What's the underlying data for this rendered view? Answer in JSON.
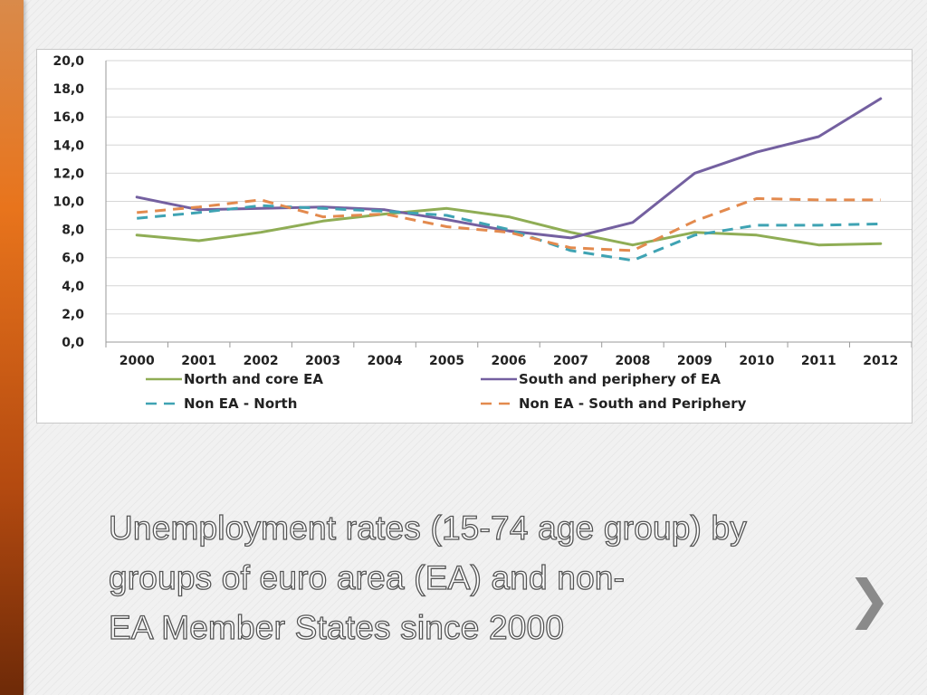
{
  "slide": {
    "caption_lines": [
      "Unemployment rates (15-74 age group) by",
      "groups of euro area (EA) and non-",
      "EA Member States since 2000"
    ],
    "next_icon": "chevron-right-icon",
    "next_glyph": "❯"
  },
  "chart_data": {
    "type": "line",
    "title": "",
    "xlabel": "",
    "ylabel": "",
    "ylim": [
      0,
      20
    ],
    "y_ticks": [
      "0,0",
      "2,0",
      "4,0",
      "6,0",
      "8,0",
      "10,0",
      "12,0",
      "14,0",
      "16,0",
      "18,0",
      "20,0"
    ],
    "x": [
      "2000",
      "2001",
      "2002",
      "2003",
      "2004",
      "2005",
      "2006",
      "2007",
      "2008",
      "2009",
      "2010",
      "2011",
      "2012"
    ],
    "grid": true,
    "legend_position": "bottom",
    "series": [
      {
        "name": "North and core EA",
        "color": "#8fad55",
        "dash": "solid",
        "values": [
          7.6,
          7.2,
          7.8,
          8.6,
          9.1,
          9.5,
          8.9,
          7.8,
          6.9,
          7.8,
          7.6,
          6.9,
          7.0
        ]
      },
      {
        "name": "South and periphery of EA",
        "color": "#7460a0",
        "dash": "solid",
        "values": [
          10.3,
          9.4,
          9.5,
          9.6,
          9.4,
          8.7,
          7.9,
          7.4,
          8.5,
          12.0,
          13.5,
          14.6,
          17.3
        ]
      },
      {
        "name": "Non EA - North",
        "color": "#3fa3b3",
        "dash": "dashed",
        "values": [
          8.8,
          9.2,
          9.7,
          9.5,
          9.3,
          9.0,
          8.0,
          6.5,
          5.8,
          7.6,
          8.3,
          8.3,
          8.4
        ]
      },
      {
        "name": "Non EA - South and Periphery",
        "color": "#e38a4e",
        "dash": "dashed",
        "values": [
          9.2,
          9.6,
          10.1,
          8.9,
          9.1,
          8.2,
          7.8,
          6.7,
          6.5,
          8.6,
          10.2,
          10.1,
          10.1
        ]
      }
    ]
  }
}
